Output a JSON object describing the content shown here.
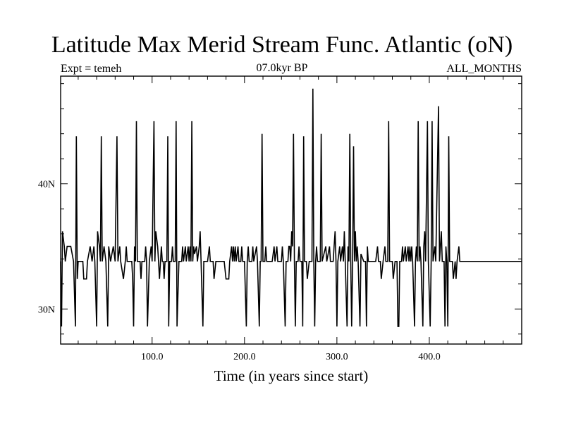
{
  "chart_data": {
    "type": "line",
    "title": "Latitude Max Merid Stream Func. Atlantic (oN)",
    "subtitle_left": "Expt = temeh",
    "subtitle_center": "07.0kyr BP",
    "subtitle_right": "ALL_MONTHS",
    "xlabel": "Time (in years since start)",
    "ylabel": "",
    "xlim": [
      1,
      500
    ],
    "ylim": [
      27.2,
      48.6
    ],
    "x_ticks": [
      100,
      200,
      300,
      400
    ],
    "x_tick_labels": [
      "100.0",
      "200.0",
      "300.0",
      "400.0"
    ],
    "y_ticks": [
      30,
      40
    ],
    "y_tick_labels": [
      "30N",
      "40N"
    ],
    "x_minor_step": 20,
    "y_minor_step": 2,
    "grid": false,
    "baseline": 33.8,
    "series": [
      {
        "name": "",
        "levels": [
          28.6,
          32.4,
          33.2,
          34.4,
          35.0,
          36.2,
          38.8,
          43.8,
          45.0,
          46.2,
          47.6
        ],
        "points": [
          [
            1,
            33.8
          ],
          [
            2,
            28.6
          ],
          [
            3,
            36.2
          ],
          [
            5,
            35.0
          ],
          [
            6,
            33.8
          ],
          [
            8,
            35.0
          ],
          [
            12,
            35.0
          ],
          [
            15,
            33.8
          ],
          [
            17,
            28.6
          ],
          [
            18,
            43.8
          ],
          [
            19,
            32.4
          ],
          [
            20,
            33.8
          ],
          [
            25,
            33.8
          ],
          [
            26,
            32.4
          ],
          [
            29,
            32.4
          ],
          [
            30,
            33.8
          ],
          [
            33,
            35.0
          ],
          [
            35,
            33.8
          ],
          [
            37,
            35.0
          ],
          [
            38,
            33.8
          ],
          [
            40,
            28.6
          ],
          [
            41,
            36.2
          ],
          [
            43,
            35.0
          ],
          [
            44,
            33.8
          ],
          [
            45,
            43.8
          ],
          [
            46,
            33.8
          ],
          [
            48,
            35.0
          ],
          [
            50,
            33.8
          ],
          [
            52,
            28.6
          ],
          [
            53,
            35.0
          ],
          [
            55,
            33.8
          ],
          [
            58,
            35.0
          ],
          [
            60,
            33.8
          ],
          [
            62,
            43.8
          ],
          [
            63,
            33.8
          ],
          [
            65,
            35.0
          ],
          [
            66,
            33.8
          ],
          [
            69,
            32.4
          ],
          [
            71,
            33.8
          ],
          [
            72,
            35.0
          ],
          [
            73,
            33.8
          ],
          [
            76,
            33.8
          ],
          [
            78,
            33.8
          ],
          [
            79,
            32.4
          ],
          [
            80,
            28.6
          ],
          [
            81,
            35.0
          ],
          [
            82,
            33.8
          ],
          [
            83,
            45.0
          ],
          [
            84,
            33.8
          ],
          [
            87,
            33.8
          ],
          [
            88,
            32.4
          ],
          [
            89,
            33.8
          ],
          [
            92,
            33.8
          ],
          [
            93,
            35.0
          ],
          [
            94,
            33.8
          ],
          [
            95,
            28.6
          ],
          [
            97,
            33.8
          ],
          [
            99,
            35.0
          ],
          [
            100,
            33.8
          ],
          [
            102,
            45.0
          ],
          [
            103,
            33.8
          ],
          [
            104,
            36.2
          ],
          [
            106,
            35.0
          ],
          [
            107,
            33.8
          ],
          [
            108,
            32.4
          ],
          [
            110,
            35.0
          ],
          [
            111,
            33.8
          ],
          [
            112,
            33.8
          ],
          [
            113,
            32.4
          ],
          [
            114,
            33.8
          ],
          [
            116,
            33.8
          ],
          [
            117,
            43.8
          ],
          [
            118,
            28.6
          ],
          [
            119,
            33.8
          ],
          [
            121,
            33.8
          ],
          [
            122,
            35.0
          ],
          [
            123,
            33.8
          ],
          [
            125,
            33.8
          ],
          [
            126,
            45.0
          ],
          [
            127,
            28.6
          ],
          [
            129,
            33.8
          ],
          [
            132,
            33.8
          ],
          [
            133,
            35.0
          ],
          [
            134,
            33.8
          ],
          [
            136,
            35.0
          ],
          [
            137,
            33.8
          ],
          [
            139,
            35.0
          ],
          [
            140,
            33.8
          ],
          [
            141,
            35.0
          ],
          [
            142,
            33.8
          ],
          [
            143,
            45.0
          ],
          [
            144,
            33.8
          ],
          [
            145,
            35.0
          ],
          [
            146,
            34.4
          ],
          [
            148,
            35.0
          ],
          [
            149,
            33.8
          ],
          [
            151,
            35.0
          ],
          [
            152,
            36.2
          ],
          [
            153,
            33.8
          ],
          [
            155,
            28.6
          ],
          [
            156,
            33.8
          ],
          [
            160,
            33.8
          ],
          [
            162,
            35.0
          ],
          [
            163,
            33.8
          ],
          [
            166,
            33.8
          ],
          [
            167,
            32.4
          ],
          [
            169,
            33.8
          ],
          [
            171,
            33.8
          ],
          [
            176,
            33.8
          ],
          [
            178,
            33.8
          ],
          [
            180,
            32.4
          ],
          [
            183,
            32.4
          ],
          [
            184,
            33.8
          ],
          [
            186,
            35.0
          ],
          [
            187,
            33.8
          ],
          [
            188,
            35.0
          ],
          [
            189,
            33.8
          ],
          [
            190,
            35.0
          ],
          [
            191,
            33.8
          ],
          [
            193,
            35.0
          ],
          [
            194,
            33.8
          ],
          [
            196,
            33.8
          ],
          [
            197,
            35.0
          ],
          [
            198,
            33.8
          ],
          [
            200,
            33.8
          ],
          [
            202,
            28.6
          ],
          [
            203,
            33.8
          ],
          [
            204,
            35.0
          ],
          [
            205,
            33.8
          ],
          [
            208,
            33.8
          ],
          [
            209,
            35.0
          ],
          [
            210,
            33.8
          ],
          [
            213,
            35.0
          ],
          [
            214,
            33.8
          ],
          [
            216,
            28.6
          ],
          [
            217,
            33.8
          ],
          [
            218,
            33.8
          ],
          [
            219,
            44.0
          ],
          [
            220,
            33.8
          ],
          [
            222,
            33.8
          ],
          [
            223,
            35.0
          ],
          [
            224,
            33.8
          ],
          [
            230,
            33.8
          ],
          [
            232,
            35.0
          ],
          [
            233,
            33.8
          ],
          [
            235,
            35.0
          ],
          [
            236,
            33.8
          ],
          [
            240,
            33.8
          ],
          [
            241,
            35.0
          ],
          [
            242,
            33.8
          ],
          [
            244,
            28.6
          ],
          [
            245,
            33.8
          ],
          [
            247,
            33.8
          ],
          [
            248,
            35.0
          ],
          [
            249,
            35.0
          ],
          [
            250,
            33.8
          ],
          [
            251,
            36.2
          ],
          [
            252,
            35.0
          ],
          [
            253,
            44.0
          ],
          [
            254,
            33.8
          ],
          [
            255,
            28.6
          ],
          [
            256,
            33.8
          ],
          [
            258,
            33.8
          ],
          [
            259,
            35.0
          ],
          [
            260,
            33.8
          ],
          [
            262,
            33.8
          ],
          [
            263,
            28.6
          ],
          [
            264,
            43.8
          ],
          [
            265,
            33.8
          ],
          [
            267,
            33.8
          ],
          [
            268,
            32.4
          ],
          [
            270,
            33.8
          ],
          [
            273,
            33.8
          ],
          [
            274,
            47.6
          ],
          [
            275,
            33.8
          ],
          [
            276,
            28.6
          ],
          [
            277,
            33.8
          ],
          [
            278,
            35.0
          ],
          [
            279,
            33.8
          ],
          [
            282,
            33.8
          ],
          [
            283,
            44.0
          ],
          [
            284,
            33.8
          ],
          [
            288,
            35.0
          ],
          [
            289,
            33.8
          ],
          [
            292,
            35.0
          ],
          [
            293,
            33.8
          ],
          [
            296,
            33.8
          ],
          [
            297,
            35.0
          ],
          [
            298,
            36.2
          ],
          [
            299,
            33.8
          ],
          [
            300,
            28.6
          ],
          [
            301,
            33.8
          ],
          [
            303,
            35.0
          ],
          [
            304,
            33.8
          ],
          [
            306,
            35.0
          ],
          [
            307,
            33.8
          ],
          [
            308,
            36.2
          ],
          [
            309,
            33.8
          ],
          [
            311,
            28.6
          ],
          [
            312,
            35.0
          ],
          [
            313,
            33.8
          ],
          [
            314,
            44.0
          ],
          [
            315,
            33.8
          ],
          [
            316,
            28.6
          ],
          [
            317,
            33.8
          ],
          [
            318,
            43.0
          ],
          [
            319,
            33.8
          ],
          [
            320,
            36.2
          ],
          [
            321,
            33.8
          ],
          [
            322,
            35.0
          ],
          [
            323,
            33.8
          ],
          [
            325,
            28.6
          ],
          [
            326,
            34.4
          ],
          [
            329,
            33.8
          ],
          [
            331,
            33.8
          ],
          [
            332,
            28.6
          ],
          [
            333,
            35.0
          ],
          [
            334,
            33.8
          ],
          [
            340,
            33.8
          ],
          [
            342,
            33.8
          ],
          [
            344,
            35.0
          ],
          [
            345,
            33.8
          ],
          [
            347,
            33.8
          ],
          [
            348,
            32.4
          ],
          [
            350,
            33.8
          ],
          [
            352,
            35.0
          ],
          [
            353,
            33.8
          ],
          [
            355,
            33.8
          ],
          [
            356,
            45.0
          ],
          [
            357,
            33.8
          ],
          [
            360,
            33.8
          ],
          [
            361,
            32.4
          ],
          [
            363,
            33.8
          ],
          [
            365,
            33.8
          ],
          [
            366,
            28.6
          ],
          [
            367,
            28.6
          ],
          [
            368,
            33.8
          ],
          [
            370,
            33.8
          ],
          [
            371,
            35.0
          ],
          [
            372,
            33.8
          ],
          [
            374,
            35.0
          ],
          [
            375,
            33.8
          ],
          [
            377,
            35.0
          ],
          [
            378,
            33.8
          ],
          [
            379,
            35.0
          ],
          [
            380,
            33.8
          ],
          [
            381,
            35.0
          ],
          [
            382,
            33.8
          ],
          [
            384,
            28.6
          ],
          [
            385,
            33.8
          ],
          [
            386,
            35.0
          ],
          [
            387,
            33.8
          ],
          [
            388,
            45.0
          ],
          [
            389,
            33.8
          ],
          [
            390,
            35.0
          ],
          [
            391,
            33.8
          ],
          [
            393,
            28.6
          ],
          [
            394,
            35.0
          ],
          [
            395,
            36.2
          ],
          [
            396,
            33.8
          ],
          [
            398,
            45.0
          ],
          [
            399,
            33.8
          ],
          [
            401,
            28.6
          ],
          [
            402,
            33.8
          ],
          [
            403,
            45.0
          ],
          [
            404,
            33.8
          ],
          [
            406,
            35.0
          ],
          [
            407,
            33.8
          ],
          [
            410,
            46.2
          ],
          [
            411,
            33.8
          ],
          [
            413,
            36.2
          ],
          [
            414,
            33.8
          ],
          [
            416,
            33.8
          ],
          [
            417,
            28.6
          ],
          [
            418,
            35.0
          ],
          [
            419,
            33.8
          ],
          [
            420,
            28.6
          ],
          [
            421,
            43.8
          ],
          [
            422,
            33.8
          ],
          [
            425,
            33.8
          ],
          [
            426,
            32.4
          ],
          [
            428,
            33.8
          ],
          [
            429,
            32.4
          ],
          [
            430,
            33.8
          ],
          [
            432,
            35.0
          ],
          [
            433,
            33.8
          ],
          [
            435,
            33.8
          ]
        ]
      }
    ]
  }
}
